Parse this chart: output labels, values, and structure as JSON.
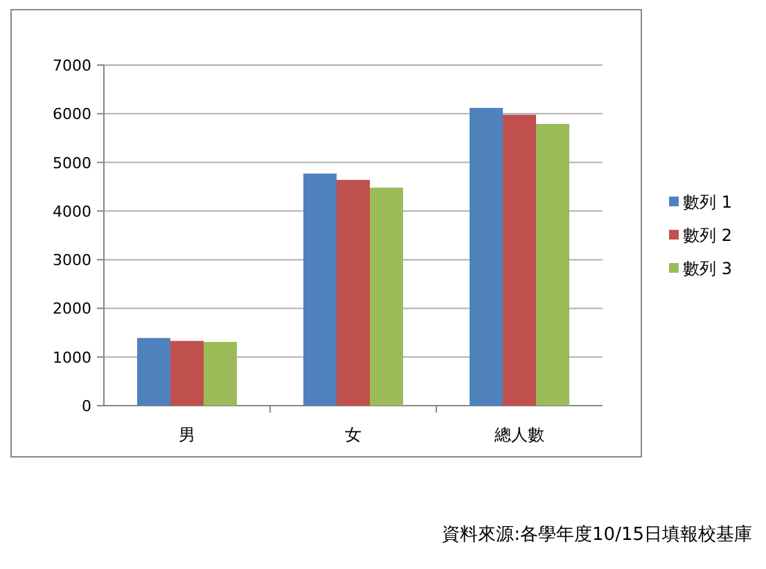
{
  "chart_data": {
    "type": "bar",
    "categories": [
      "男",
      "女",
      "總人數"
    ],
    "series": [
      {
        "name": "數列 1",
        "color": "#4f81bd",
        "values": [
          1390,
          4770,
          6120
        ]
      },
      {
        "name": "數列 2",
        "color": "#c0504d",
        "values": [
          1330,
          4640,
          5980
        ]
      },
      {
        "name": "數列 3",
        "color": "#9bbb59",
        "values": [
          1310,
          4480,
          5790
        ]
      }
    ],
    "ylim": [
      0,
      7000
    ],
    "yticks": [
      0,
      1000,
      2000,
      3000,
      4000,
      5000,
      6000,
      7000
    ],
    "grid": "y",
    "legend": "right",
    "annotations": [
      "資料來源:各學年度10/15日填報校基庫"
    ]
  }
}
